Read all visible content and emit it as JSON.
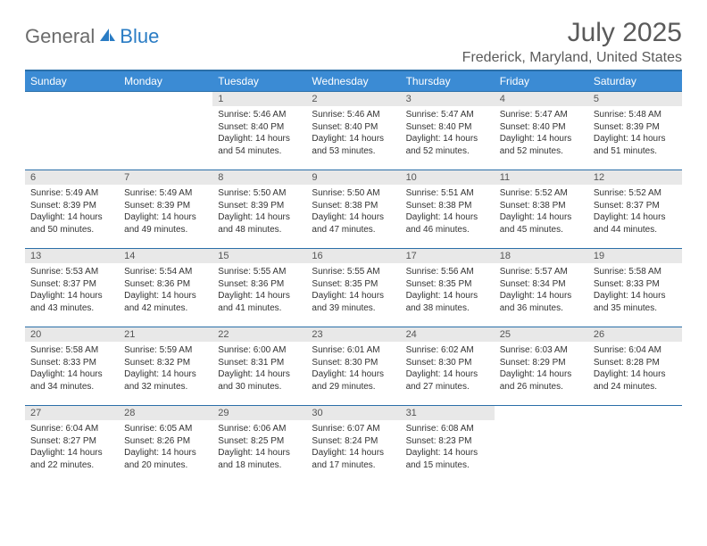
{
  "logo": {
    "general": "General",
    "blue": "Blue",
    "icon_color": "#2a7cc4"
  },
  "title": "July 2025",
  "location": "Frederick, Maryland, United States",
  "colors": {
    "header_bg": "#3b8bd4",
    "header_text": "#ffffff",
    "border": "#2a6ea8",
    "daynum_bg": "#e8e8e8",
    "text": "#333333",
    "title_text": "#5a5a5a"
  },
  "day_headers": [
    "Sunday",
    "Monday",
    "Tuesday",
    "Wednesday",
    "Thursday",
    "Friday",
    "Saturday"
  ],
  "weeks": [
    [
      null,
      null,
      {
        "n": "1",
        "sr": "Sunrise: 5:46 AM",
        "ss": "Sunset: 8:40 PM",
        "dl": "Daylight: 14 hours and 54 minutes."
      },
      {
        "n": "2",
        "sr": "Sunrise: 5:46 AM",
        "ss": "Sunset: 8:40 PM",
        "dl": "Daylight: 14 hours and 53 minutes."
      },
      {
        "n": "3",
        "sr": "Sunrise: 5:47 AM",
        "ss": "Sunset: 8:40 PM",
        "dl": "Daylight: 14 hours and 52 minutes."
      },
      {
        "n": "4",
        "sr": "Sunrise: 5:47 AM",
        "ss": "Sunset: 8:40 PM",
        "dl": "Daylight: 14 hours and 52 minutes."
      },
      {
        "n": "5",
        "sr": "Sunrise: 5:48 AM",
        "ss": "Sunset: 8:39 PM",
        "dl": "Daylight: 14 hours and 51 minutes."
      }
    ],
    [
      {
        "n": "6",
        "sr": "Sunrise: 5:49 AM",
        "ss": "Sunset: 8:39 PM",
        "dl": "Daylight: 14 hours and 50 minutes."
      },
      {
        "n": "7",
        "sr": "Sunrise: 5:49 AM",
        "ss": "Sunset: 8:39 PM",
        "dl": "Daylight: 14 hours and 49 minutes."
      },
      {
        "n": "8",
        "sr": "Sunrise: 5:50 AM",
        "ss": "Sunset: 8:39 PM",
        "dl": "Daylight: 14 hours and 48 minutes."
      },
      {
        "n": "9",
        "sr": "Sunrise: 5:50 AM",
        "ss": "Sunset: 8:38 PM",
        "dl": "Daylight: 14 hours and 47 minutes."
      },
      {
        "n": "10",
        "sr": "Sunrise: 5:51 AM",
        "ss": "Sunset: 8:38 PM",
        "dl": "Daylight: 14 hours and 46 minutes."
      },
      {
        "n": "11",
        "sr": "Sunrise: 5:52 AM",
        "ss": "Sunset: 8:38 PM",
        "dl": "Daylight: 14 hours and 45 minutes."
      },
      {
        "n": "12",
        "sr": "Sunrise: 5:52 AM",
        "ss": "Sunset: 8:37 PM",
        "dl": "Daylight: 14 hours and 44 minutes."
      }
    ],
    [
      {
        "n": "13",
        "sr": "Sunrise: 5:53 AM",
        "ss": "Sunset: 8:37 PM",
        "dl": "Daylight: 14 hours and 43 minutes."
      },
      {
        "n": "14",
        "sr": "Sunrise: 5:54 AM",
        "ss": "Sunset: 8:36 PM",
        "dl": "Daylight: 14 hours and 42 minutes."
      },
      {
        "n": "15",
        "sr": "Sunrise: 5:55 AM",
        "ss": "Sunset: 8:36 PM",
        "dl": "Daylight: 14 hours and 41 minutes."
      },
      {
        "n": "16",
        "sr": "Sunrise: 5:55 AM",
        "ss": "Sunset: 8:35 PM",
        "dl": "Daylight: 14 hours and 39 minutes."
      },
      {
        "n": "17",
        "sr": "Sunrise: 5:56 AM",
        "ss": "Sunset: 8:35 PM",
        "dl": "Daylight: 14 hours and 38 minutes."
      },
      {
        "n": "18",
        "sr": "Sunrise: 5:57 AM",
        "ss": "Sunset: 8:34 PM",
        "dl": "Daylight: 14 hours and 36 minutes."
      },
      {
        "n": "19",
        "sr": "Sunrise: 5:58 AM",
        "ss": "Sunset: 8:33 PM",
        "dl": "Daylight: 14 hours and 35 minutes."
      }
    ],
    [
      {
        "n": "20",
        "sr": "Sunrise: 5:58 AM",
        "ss": "Sunset: 8:33 PM",
        "dl": "Daylight: 14 hours and 34 minutes."
      },
      {
        "n": "21",
        "sr": "Sunrise: 5:59 AM",
        "ss": "Sunset: 8:32 PM",
        "dl": "Daylight: 14 hours and 32 minutes."
      },
      {
        "n": "22",
        "sr": "Sunrise: 6:00 AM",
        "ss": "Sunset: 8:31 PM",
        "dl": "Daylight: 14 hours and 30 minutes."
      },
      {
        "n": "23",
        "sr": "Sunrise: 6:01 AM",
        "ss": "Sunset: 8:30 PM",
        "dl": "Daylight: 14 hours and 29 minutes."
      },
      {
        "n": "24",
        "sr": "Sunrise: 6:02 AM",
        "ss": "Sunset: 8:30 PM",
        "dl": "Daylight: 14 hours and 27 minutes."
      },
      {
        "n": "25",
        "sr": "Sunrise: 6:03 AM",
        "ss": "Sunset: 8:29 PM",
        "dl": "Daylight: 14 hours and 26 minutes."
      },
      {
        "n": "26",
        "sr": "Sunrise: 6:04 AM",
        "ss": "Sunset: 8:28 PM",
        "dl": "Daylight: 14 hours and 24 minutes."
      }
    ],
    [
      {
        "n": "27",
        "sr": "Sunrise: 6:04 AM",
        "ss": "Sunset: 8:27 PM",
        "dl": "Daylight: 14 hours and 22 minutes."
      },
      {
        "n": "28",
        "sr": "Sunrise: 6:05 AM",
        "ss": "Sunset: 8:26 PM",
        "dl": "Daylight: 14 hours and 20 minutes."
      },
      {
        "n": "29",
        "sr": "Sunrise: 6:06 AM",
        "ss": "Sunset: 8:25 PM",
        "dl": "Daylight: 14 hours and 18 minutes."
      },
      {
        "n": "30",
        "sr": "Sunrise: 6:07 AM",
        "ss": "Sunset: 8:24 PM",
        "dl": "Daylight: 14 hours and 17 minutes."
      },
      {
        "n": "31",
        "sr": "Sunrise: 6:08 AM",
        "ss": "Sunset: 8:23 PM",
        "dl": "Daylight: 14 hours and 15 minutes."
      },
      null,
      null
    ]
  ]
}
